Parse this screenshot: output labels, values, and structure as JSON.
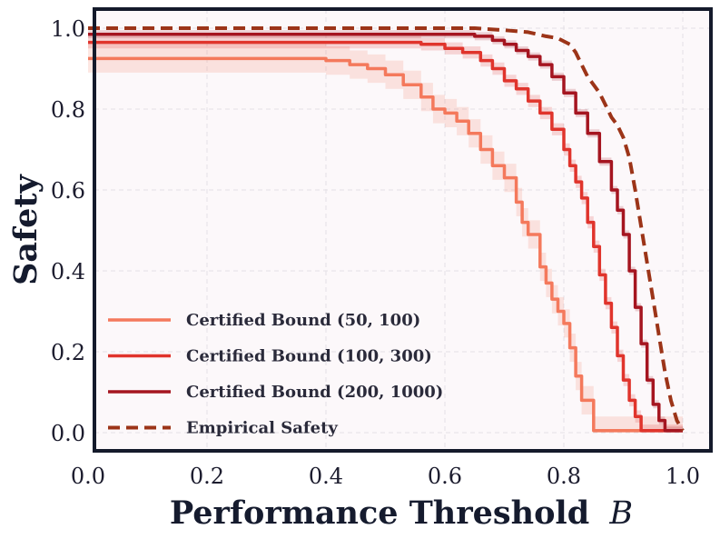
{
  "chart_data": {
    "type": "line",
    "title": "",
    "xlabel": "Performance Threshold",
    "xlabel_symbol": "B",
    "ylabel": "Safety",
    "xlim": [
      0.0,
      1.02
    ],
    "ylim": [
      -0.05,
      1.05
    ],
    "grid": true,
    "legend_position": "bottom-left",
    "colors": {
      "plot_bg": "#fcf8fa",
      "frame": "#141a2b",
      "grid": "#e4e0e6"
    },
    "x_ticks": [
      {
        "value": 0.0,
        "label": "0.0"
      },
      {
        "value": 0.2,
        "label": "0.2"
      },
      {
        "value": 0.4,
        "label": "0.4"
      },
      {
        "value": 0.6,
        "label": "0.6"
      },
      {
        "value": 0.8,
        "label": "0.8"
      },
      {
        "value": 1.0,
        "label": "1.0"
      }
    ],
    "y_ticks": [
      {
        "value": 0.0,
        "label": "0.0"
      },
      {
        "value": 0.2,
        "label": "0.2"
      },
      {
        "value": 0.4,
        "label": "0.4"
      },
      {
        "value": 0.6,
        "label": "0.6"
      },
      {
        "value": 0.8,
        "label": "0.8"
      },
      {
        "value": 1.0,
        "label": "1.0"
      }
    ],
    "series": [
      {
        "name": "Certified Bound (50, 100)",
        "color": "#f4795c",
        "style": "solid",
        "step": true,
        "band_halfwidth": 0.035,
        "x": [
          0.0,
          0.36,
          0.4,
          0.44,
          0.47,
          0.5,
          0.53,
          0.56,
          0.58,
          0.6,
          0.62,
          0.64,
          0.66,
          0.68,
          0.7,
          0.72,
          0.73,
          0.74,
          0.76,
          0.77,
          0.78,
          0.79,
          0.8,
          0.81,
          0.82,
          0.83,
          0.85,
          1.0
        ],
        "y": [
          0.925,
          0.925,
          0.92,
          0.91,
          0.9,
          0.885,
          0.86,
          0.83,
          0.8,
          0.79,
          0.77,
          0.74,
          0.7,
          0.66,
          0.63,
          0.57,
          0.52,
          0.49,
          0.41,
          0.37,
          0.33,
          0.3,
          0.27,
          0.21,
          0.14,
          0.08,
          0.005,
          0.005
        ]
      },
      {
        "name": "Certified Bound (100, 300)",
        "color": "#e0342c",
        "style": "solid",
        "step": true,
        "band_halfwidth": 0.015,
        "x": [
          0.0,
          0.5,
          0.56,
          0.6,
          0.63,
          0.66,
          0.68,
          0.7,
          0.72,
          0.74,
          0.76,
          0.78,
          0.8,
          0.81,
          0.82,
          0.83,
          0.84,
          0.85,
          0.86,
          0.87,
          0.88,
          0.89,
          0.9,
          0.91,
          0.92,
          0.93,
          1.0
        ],
        "y": [
          0.965,
          0.965,
          0.96,
          0.95,
          0.94,
          0.92,
          0.9,
          0.87,
          0.85,
          0.82,
          0.79,
          0.75,
          0.7,
          0.66,
          0.62,
          0.58,
          0.52,
          0.46,
          0.39,
          0.32,
          0.26,
          0.19,
          0.13,
          0.08,
          0.04,
          0.005,
          0.005
        ]
      },
      {
        "name": "Certified Bound (200, 1000)",
        "color": "#a51520",
        "style": "solid",
        "step": true,
        "band_halfwidth": 0.01,
        "x": [
          0.0,
          0.6,
          0.65,
          0.68,
          0.7,
          0.72,
          0.74,
          0.76,
          0.78,
          0.8,
          0.82,
          0.84,
          0.86,
          0.88,
          0.89,
          0.9,
          0.91,
          0.92,
          0.93,
          0.94,
          0.95,
          0.96,
          0.97,
          1.0
        ],
        "y": [
          0.985,
          0.985,
          0.98,
          0.97,
          0.96,
          0.945,
          0.93,
          0.91,
          0.88,
          0.84,
          0.79,
          0.74,
          0.67,
          0.6,
          0.55,
          0.49,
          0.4,
          0.31,
          0.22,
          0.13,
          0.07,
          0.03,
          0.005,
          0.005
        ]
      },
      {
        "name": "Empirical Safety",
        "color": "#9c3418",
        "style": "dashed",
        "step": false,
        "x": [
          0.0,
          0.65,
          0.7,
          0.74,
          0.77,
          0.79,
          0.81,
          0.82,
          0.83,
          0.84,
          0.85,
          0.86,
          0.87,
          0.88,
          0.89,
          0.9,
          0.91,
          0.92,
          0.93,
          0.94,
          0.95,
          0.96,
          0.97,
          0.98,
          0.99,
          1.0
        ],
        "y": [
          1.0,
          1.0,
          0.995,
          0.99,
          0.98,
          0.975,
          0.96,
          0.94,
          0.91,
          0.88,
          0.86,
          0.84,
          0.81,
          0.78,
          0.76,
          0.73,
          0.68,
          0.6,
          0.51,
          0.42,
          0.33,
          0.24,
          0.15,
          0.08,
          0.03,
          0.005
        ]
      }
    ]
  }
}
